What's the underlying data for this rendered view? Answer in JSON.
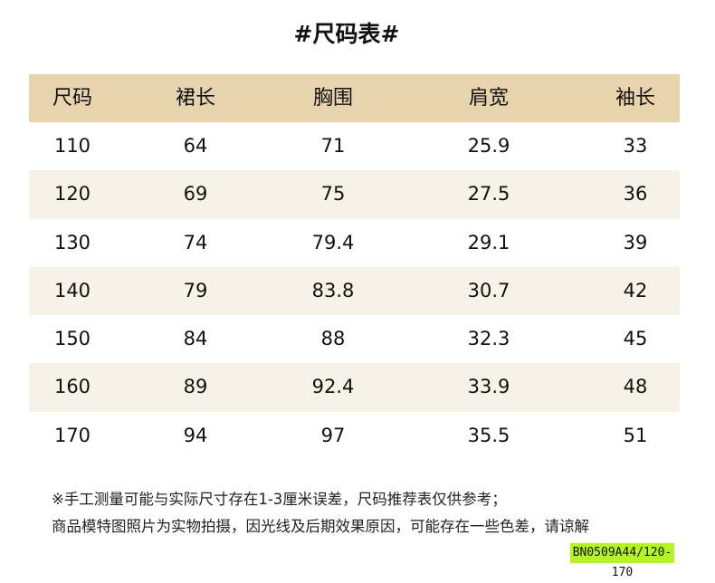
{
  "title": "#尺码表#",
  "table": {
    "headers": [
      "尺码",
      "裙长",
      "胸围",
      "肩宽",
      "袖长"
    ],
    "rows": [
      [
        "110",
        "64",
        "71",
        "25.9",
        "33"
      ],
      [
        "120",
        "69",
        "75",
        "27.5",
        "36"
      ],
      [
        "130",
        "74",
        "79.4",
        "29.1",
        "39"
      ],
      [
        "140",
        "79",
        "83.8",
        "30.7",
        "42"
      ],
      [
        "150",
        "84",
        "88",
        "32.3",
        "45"
      ],
      [
        "160",
        "89",
        "92.4",
        "33.9",
        "48"
      ],
      [
        "170",
        "94",
        "97",
        "35.5",
        "51"
      ]
    ]
  },
  "notes": [
    "※手工测量可能与实际尺寸存在1-3厘米误差，尺码推荐表仅供参考；",
    "商品模特图照片为实物拍摄，因光线及后期效果原因，可能存在一些色差，请谅解"
  ],
  "product_code": "BN0509A44/120-170",
  "colors": {
    "header_bg": "#e8d4ac",
    "alt_row_bg": "#f7f2e7",
    "code_bg": "#b4f520"
  }
}
